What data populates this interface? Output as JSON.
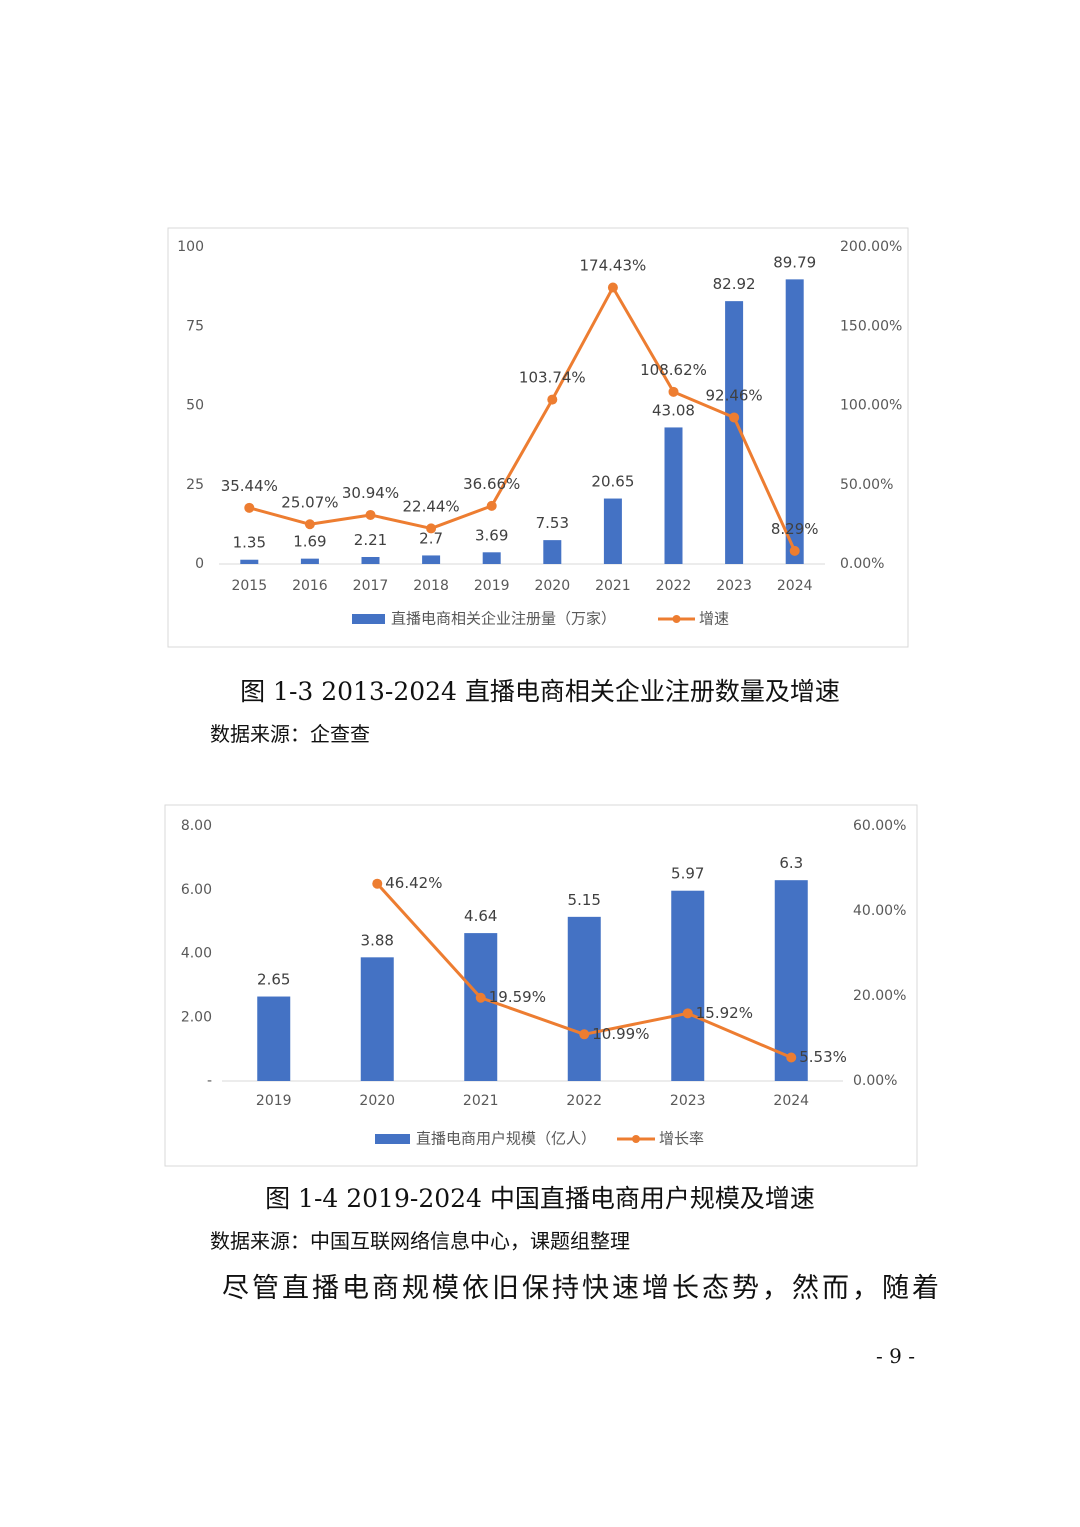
{
  "chart_data": [
    {
      "type": "combo",
      "categories": [
        "2015",
        "2016",
        "2017",
        "2018",
        "2019",
        "2020",
        "2021",
        "2022",
        "2023",
        "2024"
      ],
      "series": [
        {
          "name": "直播电商相关企业注册量（万家）",
          "type": "bar",
          "color": "#4472c4",
          "values": [
            1.35,
            1.69,
            2.21,
            2.7,
            3.69,
            7.53,
            20.65,
            43.08,
            82.92,
            89.79
          ]
        },
        {
          "name": "增速",
          "type": "line",
          "axis": "y2",
          "color": "#ed7d31",
          "values": [
            35.44,
            25.07,
            30.94,
            22.44,
            36.66,
            103.74,
            174.43,
            108.62,
            92.46,
            8.29
          ],
          "value_labels": [
            "35.44%",
            "25.07%",
            "30.94%",
            "22.44%",
            "36.66%",
            "103.74%",
            "174.43%",
            "108.62%",
            "92.46%",
            "8.29%"
          ]
        }
      ],
      "ylim": [
        0,
        100
      ],
      "yticks": [
        0,
        25,
        50,
        75,
        100
      ],
      "y2lim": [
        0,
        200
      ],
      "y2ticks": [
        {
          "value": 0,
          "label": "0.00%"
        },
        {
          "value": 50,
          "label": "50.00%"
        },
        {
          "value": 100,
          "label": "100.00%"
        },
        {
          "value": 150,
          "label": "150.00%"
        },
        {
          "value": 200,
          "label": "200.00%"
        }
      ],
      "grid": false,
      "legend": "bottom"
    },
    {
      "type": "combo",
      "categories": [
        "2019",
        "2020",
        "2021",
        "2022",
        "2023",
        "2024"
      ],
      "series": [
        {
          "name": "直播电商用户规模（亿人）",
          "type": "bar",
          "color": "#4472c4",
          "values": [
            2.65,
            3.88,
            4.64,
            5.15,
            5.97,
            6.3
          ]
        },
        {
          "name": "增长率",
          "type": "line",
          "axis": "y2",
          "color": "#ed7d31",
          "values": [
            null,
            46.42,
            19.59,
            10.99,
            15.92,
            5.53
          ],
          "value_labels": [
            null,
            "46.42%",
            "19.59%",
            "10.99%",
            "15.92%",
            "5.53%"
          ]
        }
      ],
      "ylim": [
        0,
        8
      ],
      "yticks": [
        {
          "value": 0,
          "label": "-"
        },
        {
          "value": 2,
          "label": "2.00"
        },
        {
          "value": 4,
          "label": "4.00"
        },
        {
          "value": 6,
          "label": "6.00"
        },
        {
          "value": 8,
          "label": "8.00"
        }
      ],
      "y2lim": [
        0,
        60
      ],
      "y2ticks": [
        {
          "value": 0,
          "label": "0.00%"
        },
        {
          "value": 20,
          "label": "20.00%"
        },
        {
          "value": 40,
          "label": "40.00%"
        },
        {
          "value": 60,
          "label": "60.00%"
        }
      ],
      "grid": false,
      "legend": "bottom"
    }
  ],
  "figure_1": {
    "caption": "图 1-3 2013-2024 直播电商相关企业注册数量及增速",
    "source": "数据来源：企查查"
  },
  "figure_2": {
    "caption": "图 1-4 2019-2024 中国直播电商用户规模及增速",
    "source": "数据来源：中国互联网络信息中心，课题组整理"
  },
  "paragraph": "尽管直播电商规模依旧保持快速增长态势，然而，随着",
  "page_number": "- 9 -"
}
